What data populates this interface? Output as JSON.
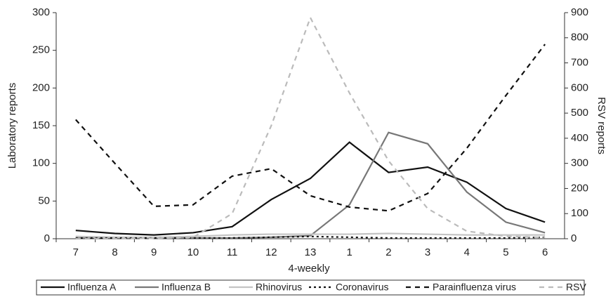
{
  "chart_data": {
    "type": "line",
    "categories": [
      "7",
      "8",
      "9",
      "10",
      "11",
      "12",
      "13",
      "1",
      "2",
      "3",
      "4",
      "5",
      "6"
    ],
    "xlabel": "4-weekly",
    "ylabel": "Laboratory reports",
    "y2label": "RSV reports",
    "ylim": [
      0,
      300
    ],
    "yticks": [
      0,
      50,
      100,
      150,
      200,
      250,
      300
    ],
    "y2lim": [
      0,
      900
    ],
    "y2ticks": [
      0,
      100,
      200,
      300,
      400,
      500,
      600,
      700,
      800,
      900
    ],
    "series": [
      {
        "name": "Influenza A",
        "color": "#111111",
        "dash": "solid",
        "values": [
          11,
          7,
          5,
          8,
          16,
          52,
          80,
          128,
          88,
          95,
          75,
          40,
          22
        ]
      },
      {
        "name": "Influenza B",
        "color": "#777777",
        "dash": "solid",
        "values": [
          2,
          1,
          1,
          1,
          1,
          2,
          4,
          45,
          141,
          126,
          62,
          22,
          8
        ]
      },
      {
        "name": "Rhinovirus",
        "color": "#c4c4c4",
        "dash": "solid",
        "values": [
          3,
          2,
          2,
          3,
          5,
          6,
          6,
          6,
          7,
          6,
          5,
          5,
          5
        ]
      },
      {
        "name": "Coronavirus",
        "color": "#111111",
        "dash": "dotted",
        "values": [
          1,
          1,
          1,
          1,
          1,
          2,
          3,
          2,
          1,
          1,
          1,
          1,
          2
        ]
      },
      {
        "name": "Parainfluenza virus",
        "color": "#111111",
        "dash": "dashed",
        "values": [
          158,
          100,
          43,
          45,
          83,
          93,
          57,
          42,
          37,
          60,
          120,
          190,
          258
        ]
      },
      {
        "name": "RSV",
        "color": "#bbbbbb",
        "dash": "dashed",
        "axis": "y2",
        "values": [
          0,
          0,
          2,
          5,
          100,
          450,
          880,
          580,
          310,
          120,
          30,
          10,
          5
        ]
      }
    ]
  }
}
